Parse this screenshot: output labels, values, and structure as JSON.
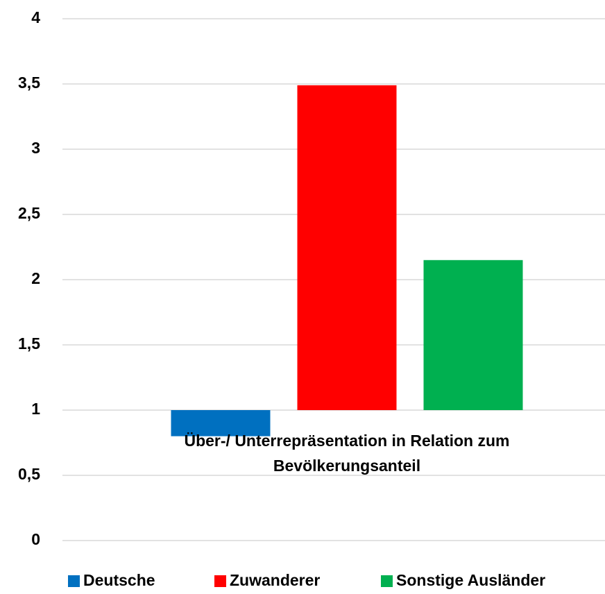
{
  "chart_data": {
    "type": "bar",
    "categories": [
      "Über-/ Unterrepräsentation in Relation zum Bevölkerungsanteil"
    ],
    "series": [
      {
        "name": "Deutsche",
        "color": "#0070c0",
        "values": [
          0.8
        ]
      },
      {
        "name": "Zuwanderer",
        "color": "#ff0000",
        "values": [
          3.49
        ]
      },
      {
        "name": "Sonstige Ausländer",
        "color": "#00b050",
        "values": [
          2.15
        ]
      }
    ],
    "ylim": [
      0,
      4
    ],
    "yticks": [
      0,
      {
        "value": 0.5,
        "label": "0,5"
      },
      1,
      {
        "value": 1.5,
        "label": "1,5"
      },
      2,
      {
        "value": 2.5,
        "label": "2,5"
      },
      3,
      {
        "value": 3.5,
        "label": "3,5"
      },
      4
    ],
    "x_axis_crosses_at": 1,
    "grid": true,
    "legend": "bottom"
  }
}
